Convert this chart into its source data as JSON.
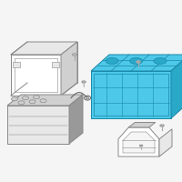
{
  "bg": "#f7f7f7",
  "white": "#ffffff",
  "light_gray": "#e8e8e8",
  "mid_gray": "#d0d0d0",
  "dark_gray": "#999999",
  "outline": "#888888",
  "tray_fill": "#4dc8e8",
  "tray_dark": "#2aa8c8",
  "tray_edge": "#1a88a8",
  "lw": 0.7,
  "fig_bg": "#f5f5f5"
}
